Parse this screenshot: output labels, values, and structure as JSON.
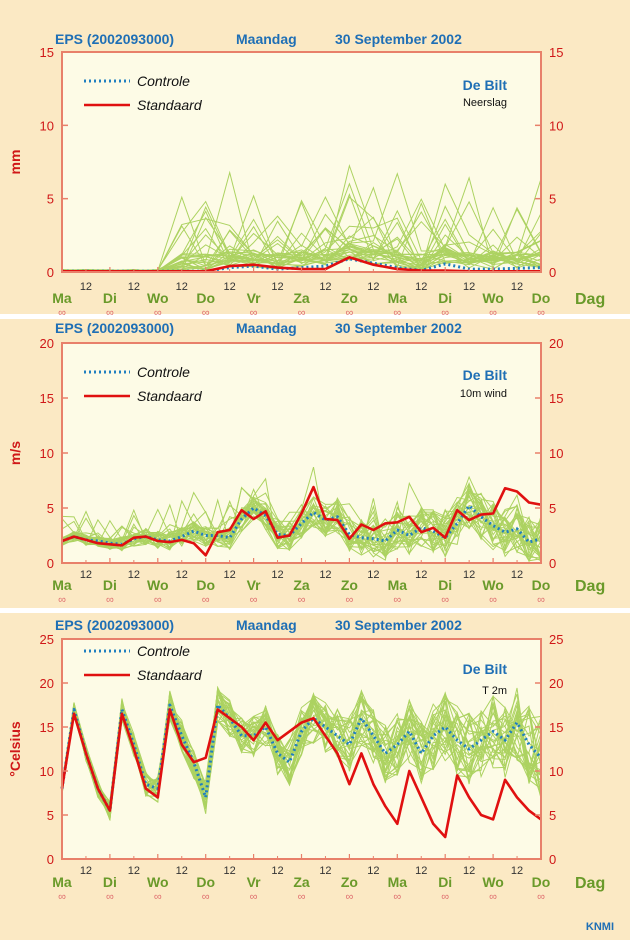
{
  "footer": {
    "brand": "KNMI"
  },
  "chart_data": [
    {
      "type": "line",
      "title": "EPS (2002093000)",
      "weekday": "Maandag",
      "date": "30 September 2002",
      "station": "De Bilt",
      "parameter": "Neerslag",
      "ylabel": "mm",
      "ylim": [
        0,
        15
      ],
      "yticks": [
        0,
        5,
        10,
        15
      ],
      "xlabel": "Dag",
      "x_days": [
        "Ma",
        "Di",
        "Wo",
        "Do",
        "Vr",
        "Za",
        "Zo",
        "Ma",
        "Di",
        "Wo",
        "Do"
      ],
      "x_noon_label": "12",
      "x_day_marker": "∞",
      "legend": [
        "Controle",
        "Standaard"
      ],
      "x_hours": [
        0,
        12,
        24,
        36,
        48,
        60,
        72,
        84,
        96,
        108,
        120,
        132,
        144,
        156,
        168,
        180,
        192,
        204,
        216,
        228,
        240
      ],
      "series": [
        {
          "name": "Controle",
          "style": "dotted",
          "color": "#1f7fc0",
          "values": [
            0.05,
            0.05,
            0.05,
            0.05,
            0.05,
            0.05,
            0.05,
            0.3,
            0.4,
            0.2,
            0.3,
            0.4,
            0.9,
            0.6,
            0.3,
            0.1,
            0.55,
            0.2,
            0.2,
            0.25,
            0.3
          ]
        },
        {
          "name": "Standaard",
          "style": "solid",
          "color": "#e01010",
          "values": [
            0.05,
            0.05,
            0.05,
            0.05,
            0.05,
            0.05,
            0.05,
            0.4,
            0.5,
            0.3,
            0.2,
            0.2,
            1.0,
            0.5,
            0.2,
            0.1,
            0.1,
            0.05,
            0.05,
            0.05,
            0.05
          ]
        }
      ],
      "ensemble": {
        "name": "Ensemble members",
        "color": "#9fcc4a",
        "count": 30,
        "peaks": [
          5.5,
          4.0,
          4.2,
          3.5,
          4.5,
          6.7,
          5.0,
          6.5,
          5.8,
          4.5
        ]
      }
    },
    {
      "type": "line",
      "title": "EPS (2002093000)",
      "weekday": "Maandag",
      "date": "30 September 2002",
      "station": "De Bilt",
      "parameter": "10m wind",
      "ylabel": "m/s",
      "ylim": [
        0,
        20
      ],
      "yticks": [
        0,
        5,
        10,
        15,
        20
      ],
      "xlabel": "Dag",
      "x_days": [
        "Ma",
        "Di",
        "Wo",
        "Do",
        "Vr",
        "Za",
        "Zo",
        "Ma",
        "Di",
        "Wo",
        "Do"
      ],
      "x_noon_label": "12",
      "x_day_marker": "∞",
      "legend": [
        "Controle",
        "Standaard"
      ],
      "x_hours": [
        0,
        6,
        12,
        18,
        24,
        30,
        36,
        42,
        48,
        54,
        60,
        66,
        72,
        78,
        84,
        90,
        96,
        102,
        108,
        114,
        120,
        126,
        132,
        138,
        144,
        150,
        156,
        162,
        168,
        174,
        180,
        186,
        192,
        198,
        204,
        210,
        216,
        222,
        228,
        234,
        240
      ],
      "series": [
        {
          "name": "Controle",
          "style": "dotted",
          "color": "#1f7fc0",
          "values": [
            2.0,
            2.4,
            2.1,
            2.0,
            1.8,
            1.7,
            2.2,
            2.4,
            2.1,
            2.0,
            2.4,
            2.9,
            2.5,
            2.5,
            2.3,
            4.0,
            5.0,
            4.3,
            2.6,
            2.5,
            3.6,
            4.6,
            3.9,
            4.2,
            2.6,
            2.3,
            2.2,
            2.0,
            3.0,
            2.5,
            3.2,
            2.9,
            2.3,
            3.6,
            5.2,
            4.2,
            3.4,
            2.8,
            3.1,
            1.9,
            2.2
          ]
        },
        {
          "name": "Standaard",
          "style": "solid",
          "color": "#e01010",
          "values": [
            2.0,
            2.4,
            2.1,
            1.8,
            1.7,
            1.6,
            2.3,
            2.4,
            2.0,
            1.9,
            2.1,
            1.8,
            0.7,
            2.8,
            3.0,
            4.8,
            4.0,
            4.7,
            2.3,
            2.5,
            4.5,
            6.9,
            4.0,
            3.9,
            2.2,
            3.5,
            3.0,
            3.6,
            3.7,
            4.2,
            2.8,
            3.2,
            2.3,
            4.8,
            3.9,
            4.4,
            4.5,
            6.8,
            6.5,
            5.5,
            5.3
          ]
        }
      ],
      "ensemble": {
        "name": "Ensemble members",
        "color": "#9fcc4a",
        "count": 30,
        "peaks": [
          3.2,
          3.0,
          3.3,
          5.0,
          7.3,
          6.8,
          8.2,
          7.6,
          8.0,
          7.8
        ]
      }
    },
    {
      "type": "line",
      "title": "EPS (2002093000)",
      "weekday": "Maandag",
      "date": "30 September 2002",
      "station": "De Bilt",
      "parameter": "T 2m",
      "ylabel": "°Celsius",
      "ylim": [
        0,
        25
      ],
      "yticks": [
        0,
        5,
        10,
        15,
        20,
        25
      ],
      "xlabel": "Dag",
      "x_days": [
        "Ma",
        "Di",
        "Wo",
        "Do",
        "Vr",
        "Za",
        "Zo",
        "Ma",
        "Di",
        "Wo",
        "Do"
      ],
      "x_noon_label": "12",
      "x_day_marker": "∞",
      "legend": [
        "Controle",
        "Standaard"
      ],
      "x_hours": [
        0,
        6,
        12,
        18,
        24,
        30,
        36,
        42,
        48,
        54,
        60,
        66,
        72,
        78,
        84,
        90,
        96,
        102,
        108,
        114,
        120,
        126,
        132,
        138,
        144,
        150,
        156,
        162,
        168,
        174,
        180,
        186,
        192,
        198,
        204,
        210,
        216,
        222,
        228,
        234,
        240
      ],
      "series": [
        {
          "name": "Controle",
          "style": "dotted",
          "color": "#1f7fc0",
          "values": [
            8,
            17,
            12,
            8,
            5.5,
            17,
            13,
            8.5,
            8,
            17.5,
            14,
            11,
            7,
            17.5,
            16,
            14,
            14,
            15,
            12,
            11,
            14.5,
            16,
            15,
            14,
            13,
            16,
            14,
            12,
            13,
            14.5,
            12,
            14,
            15,
            13.5,
            12.5,
            13.5,
            14.5,
            13.5,
            15.5,
            13,
            11.5
          ]
        },
        {
          "name": "Standaard",
          "style": "solid",
          "color": "#e01010",
          "values": [
            8,
            16.5,
            12,
            8,
            5.5,
            16.5,
            12.5,
            8,
            7,
            17,
            13,
            11,
            11.5,
            17,
            16,
            15,
            13.5,
            15.5,
            13.5,
            14.5,
            15.5,
            16,
            14,
            12,
            8.5,
            12,
            8.5,
            6,
            4,
            10,
            7,
            4,
            2.5,
            9.5,
            7,
            5,
            4.5,
            9,
            7,
            5.5,
            4.5
          ]
        }
      ],
      "ensemble": {
        "name": "Ensemble members",
        "color": "#9fcc4a",
        "count": 30
      }
    }
  ]
}
